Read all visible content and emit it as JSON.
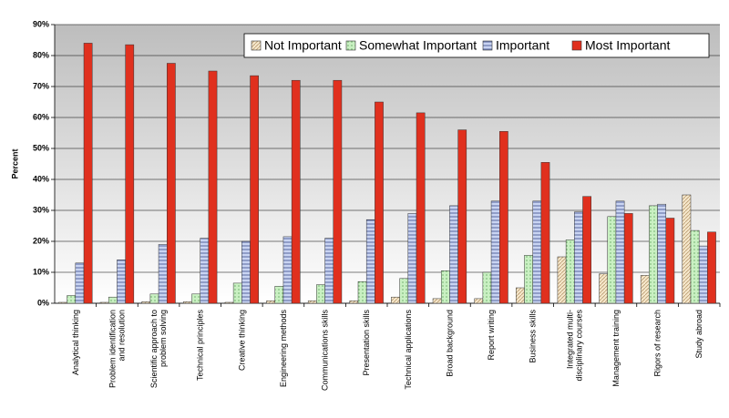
{
  "chart_data": {
    "type": "bar",
    "ylabel": "Percent",
    "categories": [
      "Analytical thinking",
      "Problem identification and resolution",
      "Scientific approach to problem solving",
      "Technical principles",
      "Creative thinking",
      "Engineering methods",
      "Communications skills",
      "Presentation skills",
      "Technical applications",
      "Broad background",
      "Report writing",
      "Business skills",
      "Integrated multi-disciplinary courses",
      "Management training",
      "Rigors of research",
      "Study abroad"
    ],
    "series": [
      {
        "name": "Not Important",
        "color": "#f6e8cc",
        "values": [
          0.3,
          0.3,
          0.5,
          0.5,
          0.3,
          0.8,
          0.8,
          0.8,
          2,
          1.5,
          1.5,
          5,
          15,
          9.5,
          9,
          35
        ]
      },
      {
        "name": "Somewhat Important",
        "color": "#c9f0c2",
        "values": [
          2.5,
          2,
          3,
          3,
          6.5,
          5.5,
          6,
          7,
          8,
          10.5,
          10,
          15.5,
          20.5,
          28,
          31.5,
          23.5
        ]
      },
      {
        "name": "Important",
        "color": "#c9d4f2",
        "values": [
          13,
          14,
          19,
          21,
          20,
          21.5,
          21,
          27,
          29,
          31.5,
          33,
          33,
          29.5,
          33,
          32,
          18.5
        ]
      },
      {
        "name": "Most Important",
        "color": "#e0301e",
        "values": [
          84,
          83.5,
          77.5,
          75,
          73.5,
          72,
          72,
          65,
          61.5,
          56,
          55.5,
          45.5,
          34.5,
          29,
          27.5,
          23
        ]
      }
    ],
    "ylim": [
      0,
      90
    ],
    "yticks": [
      {
        "value": 0,
        "label": "0%"
      },
      {
        "value": 10,
        "label": "10%"
      },
      {
        "value": 20,
        "label": "20%"
      },
      {
        "value": 30,
        "label": "30%"
      },
      {
        "value": 40,
        "label": "40%"
      },
      {
        "value": 50,
        "label": "50%"
      },
      {
        "value": 60,
        "label": "60%"
      },
      {
        "value": 70,
        "label": "70%"
      },
      {
        "value": 80,
        "label": "80%"
      },
      {
        "value": 90,
        "label": "90%"
      }
    ],
    "grid": true,
    "legend": "top-right"
  }
}
